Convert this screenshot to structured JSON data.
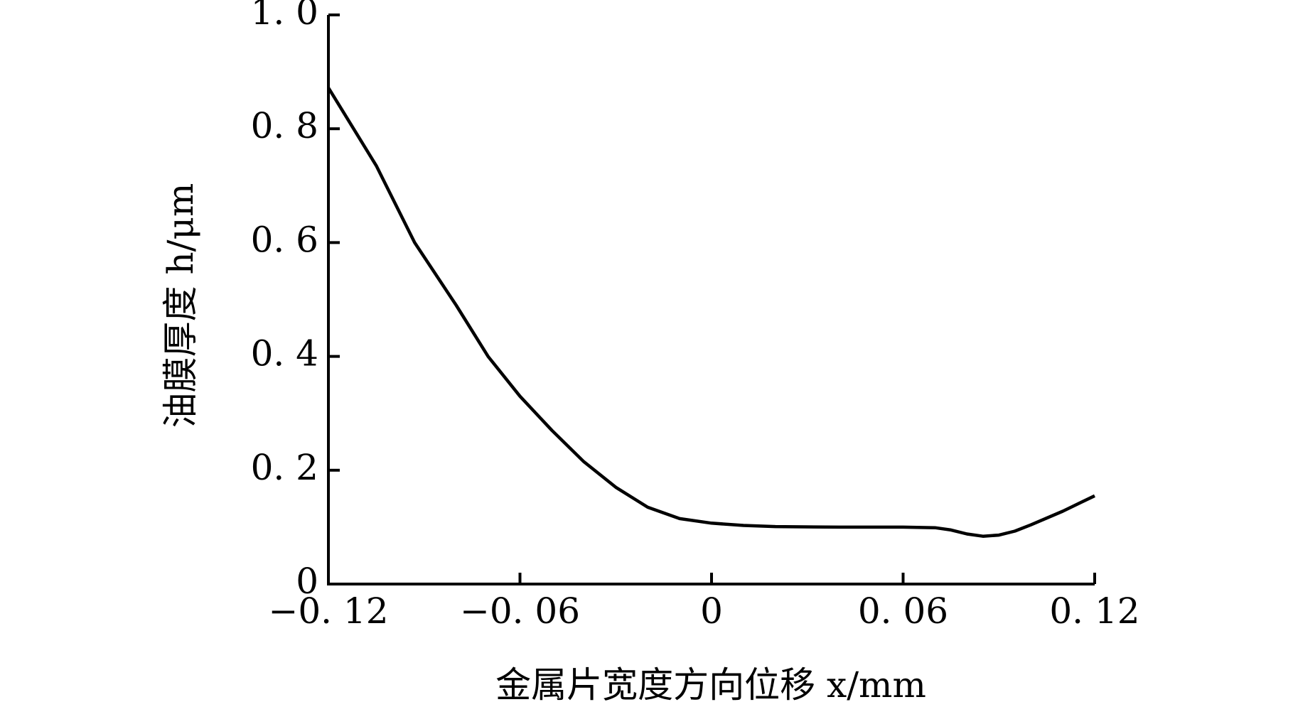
{
  "chart_data": {
    "type": "line",
    "x": [
      -0.12,
      -0.105,
      -0.093,
      -0.08,
      -0.07,
      -0.06,
      -0.05,
      -0.04,
      -0.03,
      -0.02,
      -0.01,
      0,
      0.01,
      0.02,
      0.04,
      0.06,
      0.07,
      0.075,
      0.08,
      0.085,
      0.09,
      0.095,
      0.1,
      0.11,
      0.12
    ],
    "values": [
      0.872,
      0.735,
      0.6,
      0.49,
      0.4,
      0.33,
      0.27,
      0.215,
      0.17,
      0.135,
      0.115,
      0.107,
      0.103,
      0.101,
      0.1,
      0.1,
      0.099,
      0.095,
      0.088,
      0.084,
      0.086,
      0.093,
      0.104,
      0.128,
      0.155
    ],
    "color": "#000000",
    "xlabel": "金属片宽度方向位移 x/mm",
    "ylabel": "油膜厚度 h/μm",
    "xlim": [
      -0.12,
      0.12
    ],
    "ylim": [
      0,
      1.0
    ],
    "xticks": [
      {
        "value": -0.12,
        "label": "−0. 12"
      },
      {
        "value": -0.06,
        "label": "−0. 06"
      },
      0,
      {
        "value": 0.06,
        "label": "0. 06"
      },
      {
        "value": 0.12,
        "label": "0. 12"
      }
    ],
    "yticks": [
      0,
      {
        "value": 0.2,
        "label": "0. 2"
      },
      {
        "value": 0.4,
        "label": "0. 4"
      },
      {
        "value": 0.6,
        "label": "0. 6"
      },
      {
        "value": 0.8,
        "label": "0. 8"
      },
      {
        "value": 1.0,
        "label": "1. 0"
      }
    ],
    "grid": false
  }
}
